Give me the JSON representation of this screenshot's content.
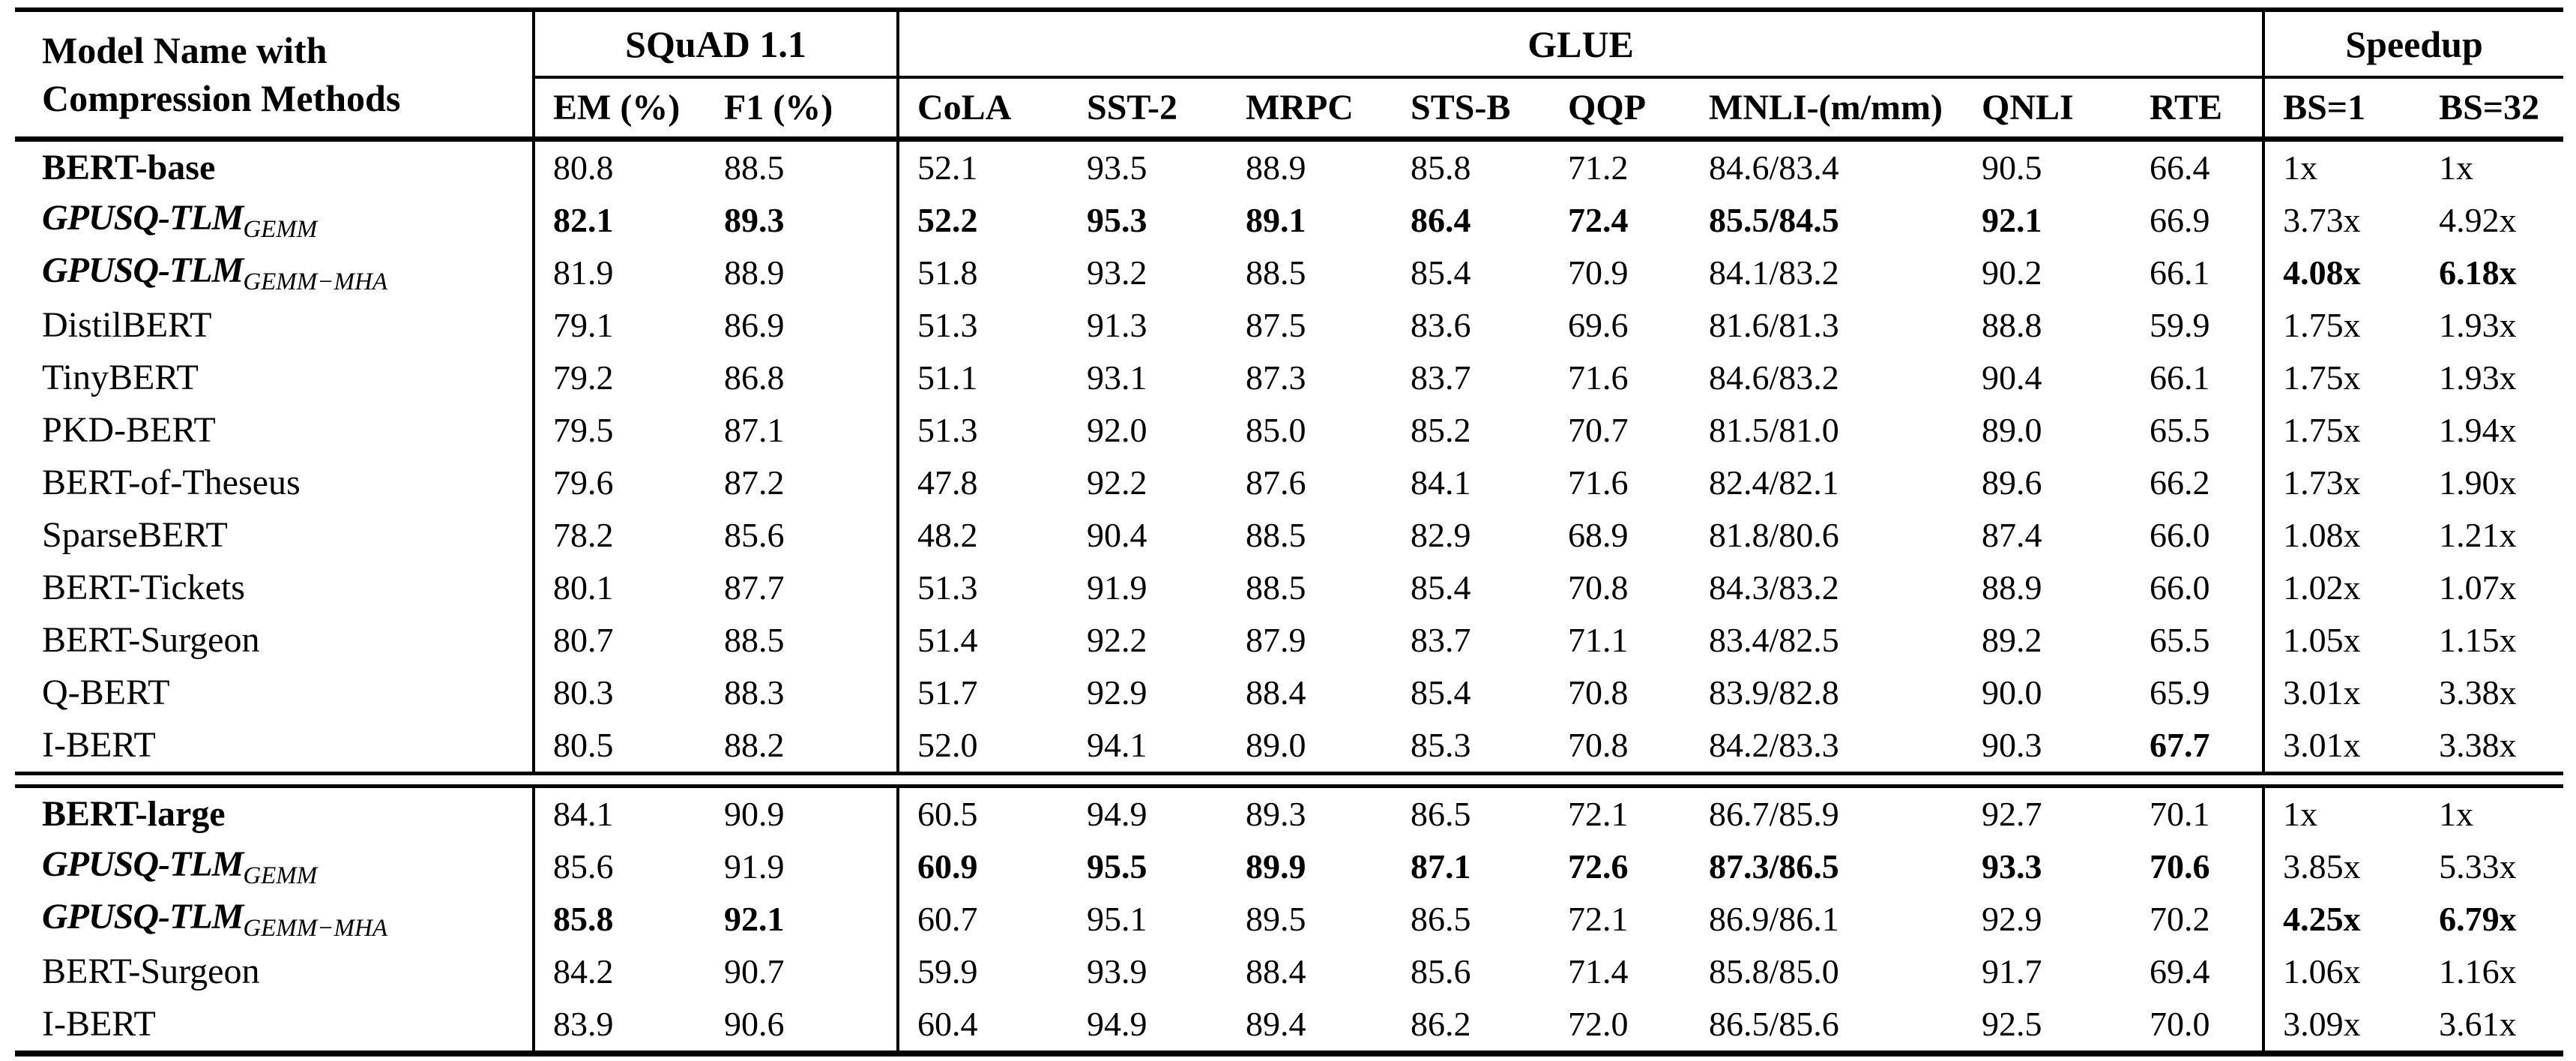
{
  "page": {
    "background": "#ffffff",
    "text_color": "#000000",
    "rule_color": "#000000"
  },
  "table": {
    "title_column": {
      "line1": "Model Name with",
      "line2": "Compression Methods"
    },
    "groups": [
      {
        "label": "SQuAD 1.1",
        "span": 2
      },
      {
        "label": "GLUE",
        "span": 8
      },
      {
        "label": "Speedup",
        "span": 2
      }
    ],
    "columns": [
      "EM (%)",
      "F1 (%)",
      "CoLA",
      "SST-2",
      "MRPC",
      "STS-B",
      "QQP",
      "MNLI-(m/mm)",
      "QNLI",
      "RTE",
      "BS=1",
      "BS=32"
    ],
    "sections": [
      {
        "rows": [
          {
            "model": "BERT-base",
            "style": "bold",
            "values": [
              "80.8",
              "88.5",
              "52.1",
              "93.5",
              "88.9",
              "85.8",
              "71.2",
              "84.6/83.4",
              "90.5",
              "66.4",
              "1x",
              "1x"
            ],
            "bold": []
          },
          {
            "model": "GPUSQ-TLM",
            "sub": "GEMM",
            "style": "bolditalic",
            "values": [
              "82.1",
              "89.3",
              "52.2",
              "95.3",
              "89.1",
              "86.4",
              "72.4",
              "85.5/84.5",
              "92.1",
              "66.9",
              "3.73x",
              "4.92x"
            ],
            "bold": [
              0,
              1,
              2,
              3,
              4,
              5,
              6,
              7,
              8
            ]
          },
          {
            "model": "GPUSQ-TLM",
            "sub": "GEMM−MHA",
            "style": "bolditalic",
            "values": [
              "81.9",
              "88.9",
              "51.8",
              "93.2",
              "88.5",
              "85.4",
              "70.9",
              "84.1/83.2",
              "90.2",
              "66.1",
              "4.08x",
              "6.18x"
            ],
            "bold": [
              10,
              11
            ]
          },
          {
            "model": "DistilBERT",
            "style": "normal",
            "values": [
              "79.1",
              "86.9",
              "51.3",
              "91.3",
              "87.5",
              "83.6",
              "69.6",
              "81.6/81.3",
              "88.8",
              "59.9",
              "1.75x",
              "1.93x"
            ],
            "bold": []
          },
          {
            "model": "TinyBERT",
            "style": "normal",
            "values": [
              "79.2",
              "86.8",
              "51.1",
              "93.1",
              "87.3",
              "83.7",
              "71.6",
              "84.6/83.2",
              "90.4",
              "66.1",
              "1.75x",
              "1.93x"
            ],
            "bold": []
          },
          {
            "model": "PKD-BERT",
            "style": "normal",
            "values": [
              "79.5",
              "87.1",
              "51.3",
              "92.0",
              "85.0",
              "85.2",
              "70.7",
              "81.5/81.0",
              "89.0",
              "65.5",
              "1.75x",
              "1.94x"
            ],
            "bold": []
          },
          {
            "model": "BERT-of-Theseus",
            "style": "normal",
            "values": [
              "79.6",
              "87.2",
              "47.8",
              "92.2",
              "87.6",
              "84.1",
              "71.6",
              "82.4/82.1",
              "89.6",
              "66.2",
              "1.73x",
              "1.90x"
            ],
            "bold": []
          },
          {
            "model": "SparseBERT",
            "style": "normal",
            "values": [
              "78.2",
              "85.6",
              "48.2",
              "90.4",
              "88.5",
              "82.9",
              "68.9",
              "81.8/80.6",
              "87.4",
              "66.0",
              "1.08x",
              "1.21x"
            ],
            "bold": []
          },
          {
            "model": "BERT-Tickets",
            "style": "normal",
            "values": [
              "80.1",
              "87.7",
              "51.3",
              "91.9",
              "88.5",
              "85.4",
              "70.8",
              "84.3/83.2",
              "88.9",
              "66.0",
              "1.02x",
              "1.07x"
            ],
            "bold": []
          },
          {
            "model": "BERT-Surgeon",
            "style": "normal",
            "values": [
              "80.7",
              "88.5",
              "51.4",
              "92.2",
              "87.9",
              "83.7",
              "71.1",
              "83.4/82.5",
              "89.2",
              "65.5",
              "1.05x",
              "1.15x"
            ],
            "bold": []
          },
          {
            "model": "Q-BERT",
            "style": "normal",
            "values": [
              "80.3",
              "88.3",
              "51.7",
              "92.9",
              "88.4",
              "85.4",
              "70.8",
              "83.9/82.8",
              "90.0",
              "65.9",
              "3.01x",
              "3.38x"
            ],
            "bold": []
          },
          {
            "model": "I-BERT",
            "style": "normal",
            "values": [
              "80.5",
              "88.2",
              "52.0",
              "94.1",
              "89.0",
              "85.3",
              "70.8",
              "84.2/83.3",
              "90.3",
              "67.7",
              "3.01x",
              "3.38x"
            ],
            "bold": [
              9
            ]
          }
        ]
      },
      {
        "rows": [
          {
            "model": "BERT-large",
            "style": "bold",
            "values": [
              "84.1",
              "90.9",
              "60.5",
              "94.9",
              "89.3",
              "86.5",
              "72.1",
              "86.7/85.9",
              "92.7",
              "70.1",
              "1x",
              "1x"
            ],
            "bold": []
          },
          {
            "model": "GPUSQ-TLM",
            "sub": "GEMM",
            "style": "bolditalic",
            "values": [
              "85.6",
              "91.9",
              "60.9",
              "95.5",
              "89.9",
              "87.1",
              "72.6",
              "87.3/86.5",
              "93.3",
              "70.6",
              "3.85x",
              "5.33x"
            ],
            "bold": [
              2,
              3,
              4,
              5,
              6,
              7,
              8,
              9
            ]
          },
          {
            "model": "GPUSQ-TLM",
            "sub": "GEMM−MHA",
            "style": "bolditalic",
            "values": [
              "85.8",
              "92.1",
              "60.7",
              "95.1",
              "89.5",
              "86.5",
              "72.1",
              "86.9/86.1",
              "92.9",
              "70.2",
              "4.25x",
              "6.79x"
            ],
            "bold": [
              0,
              1,
              10,
              11
            ]
          },
          {
            "model": "BERT-Surgeon",
            "style": "normal",
            "values": [
              "84.2",
              "90.7",
              "59.9",
              "93.9",
              "88.4",
              "85.6",
              "71.4",
              "85.8/85.0",
              "91.7",
              "69.4",
              "1.06x",
              "1.16x"
            ],
            "bold": []
          },
          {
            "model": "I-BERT",
            "style": "normal",
            "values": [
              "83.9",
              "90.6",
              "60.4",
              "94.9",
              "89.4",
              "86.2",
              "72.0",
              "86.5/85.6",
              "92.5",
              "70.0",
              "3.09x",
              "3.61x"
            ],
            "bold": []
          }
        ]
      }
    ]
  }
}
